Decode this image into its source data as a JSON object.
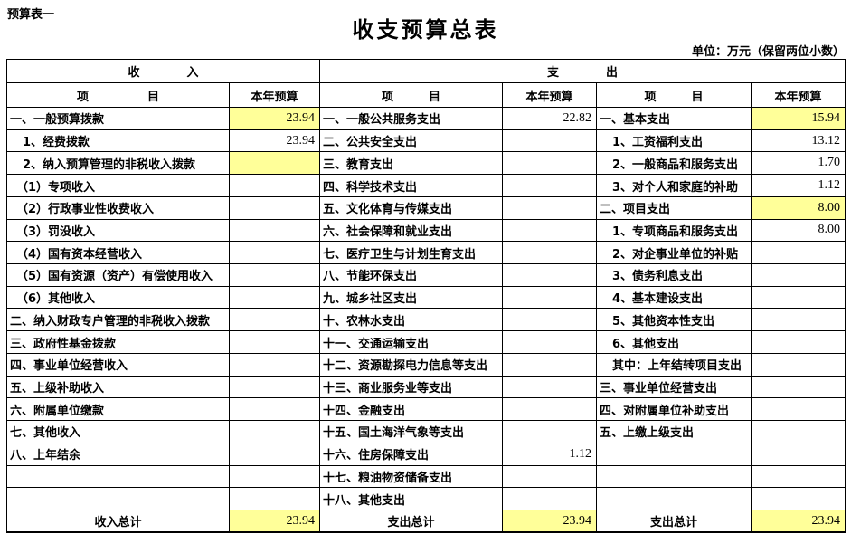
{
  "page": {
    "sheet_label": "预算表一",
    "title": "收支预算总表",
    "unit_note": "单位：万元（保留两位小数）"
  },
  "colors": {
    "highlight_cell": "#ffff99",
    "border": "#000000"
  },
  "table": {
    "header": {
      "income_group": "收　　　　入",
      "expense_group": "支　　　　出",
      "income_item_col": "项　　　　　目",
      "income_budget_col": "本年预算",
      "expense_item_col": "项　　　目",
      "expense_budget_col": "本年预算",
      "expense_detail_item_col": "项　　　目",
      "expense_detail_budget_col": "本年预算"
    },
    "income_rows": [
      {
        "label": "一、一般预算拨款",
        "value": "23.94",
        "indent": 0,
        "highlight": true
      },
      {
        "label": "1、经费拨款",
        "value": "23.94",
        "indent": 1,
        "highlight": false
      },
      {
        "label": "2、纳入预算管理的非税收入拨款",
        "value": "",
        "indent": 1,
        "highlight": true
      },
      {
        "label": "（1）专项收入",
        "value": "",
        "indent": 2,
        "highlight": false
      },
      {
        "label": "（2）行政事业性收费收入",
        "value": "",
        "indent": 2,
        "highlight": false
      },
      {
        "label": "（3）罚没收入",
        "value": "",
        "indent": 2,
        "highlight": false
      },
      {
        "label": "（4）国有资本经营收入",
        "value": "",
        "indent": 2,
        "highlight": false
      },
      {
        "label": "（5）国有资源（资产）有偿使用收入",
        "value": "",
        "indent": 2,
        "highlight": false
      },
      {
        "label": "（6）其他收入",
        "value": "",
        "indent": 2,
        "highlight": false
      },
      {
        "label": "二、纳入财政专户管理的非税收入拨款",
        "value": "",
        "indent": 0,
        "highlight": false
      },
      {
        "label": "三、政府性基金拨款",
        "value": "",
        "indent": 0,
        "highlight": false
      },
      {
        "label": "四、事业单位经营收入",
        "value": "",
        "indent": 0,
        "highlight": false
      },
      {
        "label": "五、上级补助收入",
        "value": "",
        "indent": 0,
        "highlight": false
      },
      {
        "label": "六、附属单位缴款",
        "value": "",
        "indent": 0,
        "highlight": false
      },
      {
        "label": "七、其他收入",
        "value": "",
        "indent": 0,
        "highlight": false
      },
      {
        "label": "八、上年结余",
        "value": "",
        "indent": 0,
        "highlight": false
      },
      {
        "label": "",
        "value": "",
        "indent": 0,
        "highlight": false
      },
      {
        "label": "",
        "value": "",
        "indent": 0,
        "highlight": false
      }
    ],
    "expense_rows": [
      {
        "label": "一、一般公共服务支出",
        "value": "22.82",
        "indent": 0,
        "highlight": false
      },
      {
        "label": "二、公共安全支出",
        "value": "",
        "indent": 0,
        "highlight": false
      },
      {
        "label": "三、教育支出",
        "value": "",
        "indent": 0,
        "highlight": false
      },
      {
        "label": "四、科学技术支出",
        "value": "",
        "indent": 0,
        "highlight": false
      },
      {
        "label": "五、文化体育与传媒支出",
        "value": "",
        "indent": 0,
        "highlight": false
      },
      {
        "label": "六、社会保障和就业支出",
        "value": "",
        "indent": 0,
        "highlight": false
      },
      {
        "label": "七、医疗卫生与计划生育支出",
        "value": "",
        "indent": 0,
        "highlight": false
      },
      {
        "label": "八、节能环保支出",
        "value": "",
        "indent": 0,
        "highlight": false
      },
      {
        "label": "九、城乡社区支出",
        "value": "",
        "indent": 0,
        "highlight": false
      },
      {
        "label": "十、农林水支出",
        "value": "",
        "indent": 0,
        "highlight": false
      },
      {
        "label": "十一、交通运输支出",
        "value": "",
        "indent": 0,
        "highlight": false
      },
      {
        "label": "十二、资源勘探电力信息等支出",
        "value": "",
        "indent": 0,
        "highlight": false
      },
      {
        "label": "十三、商业服务业等支出",
        "value": "",
        "indent": 0,
        "highlight": false
      },
      {
        "label": "十四、金融支出",
        "value": "",
        "indent": 0,
        "highlight": false
      },
      {
        "label": "十五、国土海洋气象等支出",
        "value": "",
        "indent": 0,
        "highlight": false
      },
      {
        "label": "十六、住房保障支出",
        "value": "1.12",
        "indent": 0,
        "highlight": false
      },
      {
        "label": "十七、粮油物资储备支出",
        "value": "",
        "indent": 0,
        "highlight": false
      },
      {
        "label": "十八、其他支出",
        "value": "",
        "indent": 0,
        "highlight": false
      }
    ],
    "expense_detail_rows": [
      {
        "label": "一、基本支出",
        "value": "15.94",
        "indent": 0,
        "highlight": true
      },
      {
        "label": "1、工资福利支出",
        "value": "13.12",
        "indent": 1,
        "highlight": false
      },
      {
        "label": "2、一般商品和服务支出",
        "value": "1.70",
        "indent": 1,
        "highlight": false
      },
      {
        "label": "3、对个人和家庭的补助",
        "value": "1.12",
        "indent": 1,
        "highlight": false
      },
      {
        "label": "二、项目支出",
        "value": "8.00",
        "indent": 0,
        "highlight": true
      },
      {
        "label": "1、专项商品和服务支出",
        "value": "8.00",
        "indent": 1,
        "highlight": false
      },
      {
        "label": "2、对企事业单位的补贴",
        "value": "",
        "indent": 1,
        "highlight": false
      },
      {
        "label": "3、债务利息支出",
        "value": "",
        "indent": 1,
        "highlight": false
      },
      {
        "label": "4、基本建设支出",
        "value": "",
        "indent": 1,
        "highlight": false
      },
      {
        "label": "5、其他资本性支出",
        "value": "",
        "indent": 1,
        "highlight": false
      },
      {
        "label": "6、其他支出",
        "value": "",
        "indent": 1,
        "highlight": false
      },
      {
        "label": "其中：上年结转项目支出",
        "value": "",
        "indent": 1,
        "highlight": false
      },
      {
        "label": "三、事业单位经营支出",
        "value": "",
        "indent": 0,
        "highlight": false
      },
      {
        "label": "四、对附属单位补助支出",
        "value": "",
        "indent": 0,
        "highlight": false
      },
      {
        "label": "五、上缴上级支出",
        "value": "",
        "indent": 0,
        "highlight": false
      },
      {
        "label": "",
        "value": "",
        "indent": 0,
        "highlight": false
      },
      {
        "label": "",
        "value": "",
        "indent": 0,
        "highlight": false
      },
      {
        "label": "",
        "value": "",
        "indent": 0,
        "highlight": false
      }
    ],
    "totals": {
      "income_label": "收入总计",
      "income_value": "23.94",
      "expense_label": "支出总计",
      "expense_value": "23.94",
      "expense_detail_label": "支出总计",
      "expense_detail_value": "23.94"
    }
  }
}
